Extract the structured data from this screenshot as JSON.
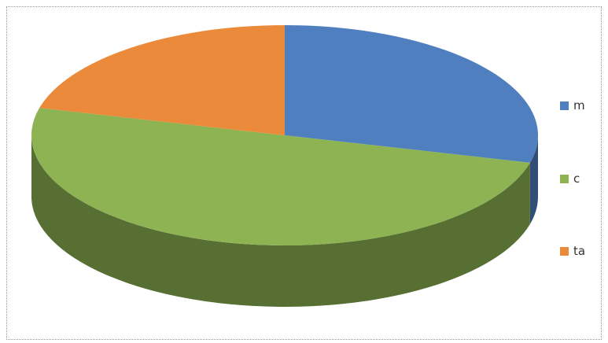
{
  "chart_data": {
    "type": "pie",
    "title": "",
    "legend_position": "right",
    "series": [
      {
        "name": "m",
        "value": 29,
        "color": "#4f7fbf"
      },
      {
        "name": "c",
        "value": 50,
        "color": "#8db352"
      },
      {
        "name": "ta",
        "value": 21,
        "color": "#ea8a3a"
      }
    ]
  }
}
